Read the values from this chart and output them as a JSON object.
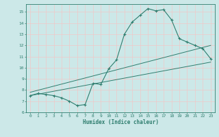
{
  "xlabel": "Humidex (Indice chaleur)",
  "ylabel": "",
  "bg_color": "#cce8e8",
  "grid_color": "#f0c8c8",
  "line_color": "#2e7d6e",
  "xlim": [
    -0.5,
    23.5
  ],
  "ylim": [
    6,
    15.7
  ],
  "yticks": [
    6,
    7,
    8,
    9,
    10,
    11,
    12,
    13,
    14,
    15
  ],
  "xticks": [
    0,
    1,
    2,
    3,
    4,
    5,
    6,
    7,
    8,
    9,
    10,
    11,
    12,
    13,
    14,
    15,
    16,
    17,
    18,
    19,
    20,
    21,
    22,
    23
  ],
  "curve1_x": [
    0,
    1,
    2,
    3,
    4,
    5,
    6,
    7,
    8,
    9,
    10,
    11,
    12,
    13,
    14,
    15,
    16,
    17,
    18,
    19,
    20,
    21,
    22,
    23
  ],
  "curve1_y": [
    7.5,
    7.7,
    7.6,
    7.5,
    7.3,
    7.0,
    6.6,
    6.7,
    8.6,
    8.5,
    9.9,
    10.7,
    13.0,
    14.1,
    14.7,
    15.3,
    15.1,
    15.2,
    14.3,
    12.6,
    12.3,
    12.0,
    11.7,
    10.8
  ],
  "line1_x": [
    0,
    23
  ],
  "line1_y": [
    7.5,
    10.5
  ],
  "line2_x": [
    0,
    23
  ],
  "line2_y": [
    7.8,
    12.0
  ]
}
